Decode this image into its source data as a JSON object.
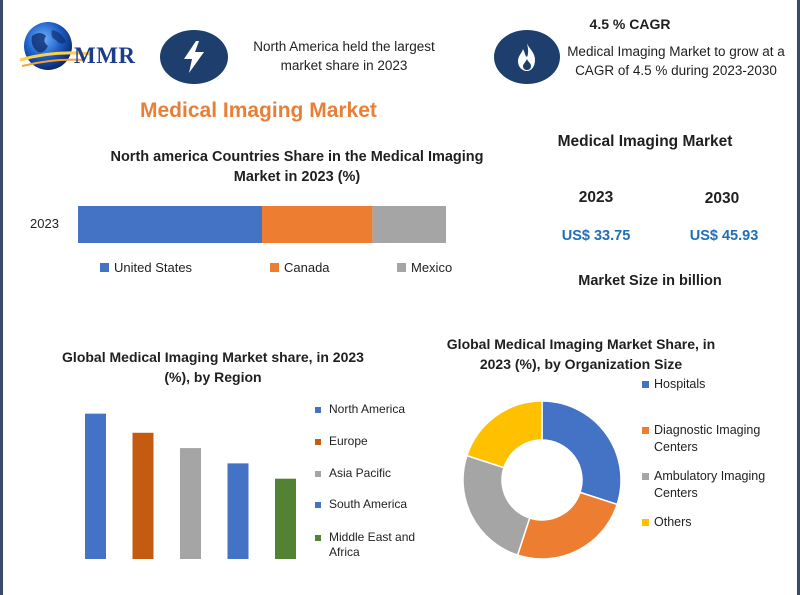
{
  "brand": {
    "logo_text": "MMR"
  },
  "header": {
    "stat_text": "North America held the largest market share in 2023",
    "cagr_title": "4.5 % CAGR",
    "cagr_text": "Medical Imaging Market to grow at a CAGR of 4.5 % during 2023-2030",
    "icons": [
      "lightning-bolt-icon",
      "flame-icon"
    ]
  },
  "main_title": "Medical Imaging Market",
  "market_size": {
    "title": "Medical Imaging Market",
    "year1": "2023",
    "year2": "2030",
    "value1": "US$ 33.75",
    "value2": "US$ 45.93",
    "note": "Market Size in billion"
  },
  "chart_data": [
    {
      "type": "bar",
      "orientation": "horizontal-stacked",
      "title": "North america Countries Share in the  Medical Imaging Market in 2023 (%)",
      "categories": [
        "2023"
      ],
      "series": [
        {
          "name": "United States",
          "values": [
            50
          ],
          "color": "#4472c4"
        },
        {
          "name": "Canada",
          "values": [
            30
          ],
          "color": "#ed7d31"
        },
        {
          "name": "Mexico",
          "values": [
            20
          ],
          "color": "#a5a5a5"
        }
      ],
      "xlim": [
        0,
        100
      ],
      "legend": "bottom"
    },
    {
      "type": "bar",
      "title": "Global Medical Imaging Market share, in 2023 (%), by Region",
      "categories": [
        "North America",
        "Europe",
        "Asia Pacific",
        "South America",
        "Middle East and Africa"
      ],
      "values": [
        38,
        33,
        29,
        25,
        21
      ],
      "colors": [
        "#4472c4",
        "#c55a11",
        "#a5a5a5",
        "#4472c4",
        "#548235"
      ],
      "ylim": [
        0,
        40
      ],
      "legend": "right"
    },
    {
      "type": "pie",
      "style": "donut",
      "title": "Global Medical Imaging Market Share, in 2023 (%), by Organization Size",
      "categories": [
        "Hospitals",
        "Diagnostic Imaging Centers",
        "Ambulatory Imaging Centers",
        "Others"
      ],
      "values": [
        30,
        25,
        25,
        20
      ],
      "colors": [
        "#4472c4",
        "#ed7d31",
        "#a5a5a5",
        "#ffc000"
      ],
      "legend": "right"
    }
  ]
}
